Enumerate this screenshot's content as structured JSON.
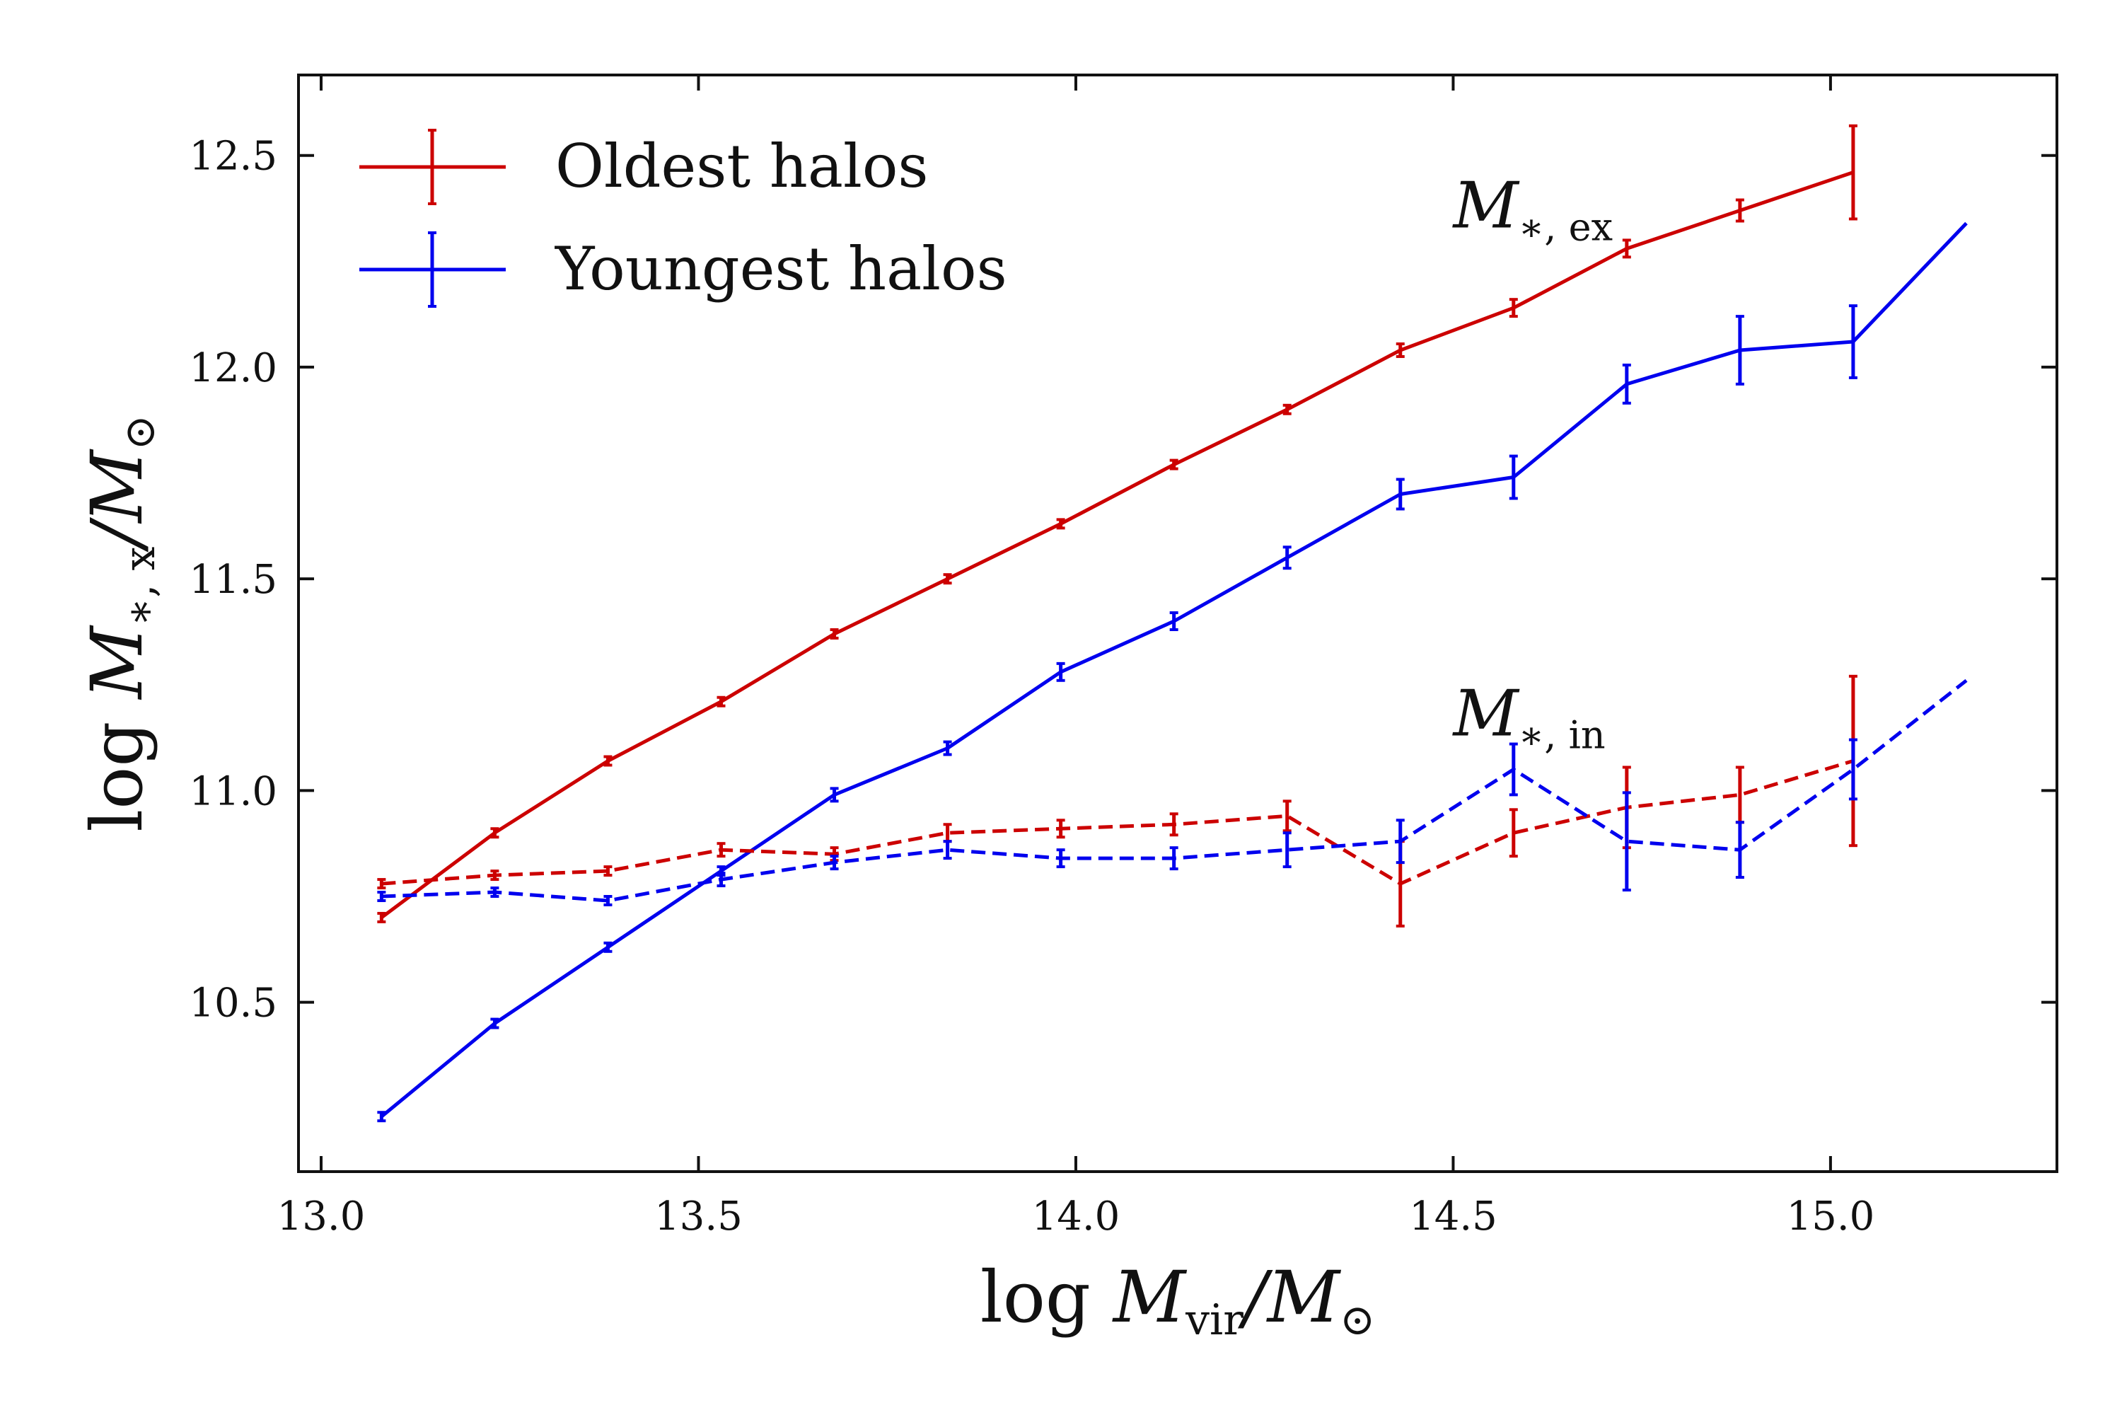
{
  "chart_data": {
    "type": "line",
    "title": "",
    "xlabel": {
      "prefix": "log ",
      "symbol": "M",
      "sub": "vir",
      "suffix": "/M",
      "suffix_sub": "⊙"
    },
    "ylabel": {
      "prefix": "log ",
      "symbol": "M",
      "sub": "∗, x",
      "suffix": "/M",
      "suffix_sub": "⊙"
    },
    "xlim": [
      12.97,
      15.3
    ],
    "ylim": [
      10.1,
      12.69
    ],
    "xticks": [
      13.0,
      13.5,
      14.0,
      14.5,
      15.0
    ],
    "xtick_labels": [
      "13.0",
      "13.5",
      "14.0",
      "14.5",
      "15.0"
    ],
    "yticks": [
      10.5,
      11.0,
      11.5,
      12.0,
      12.5
    ],
    "ytick_labels": [
      "10.5",
      "11.0",
      "11.5",
      "12.0",
      "12.5"
    ],
    "grid": false,
    "legend": {
      "placement": "top-left",
      "entries": [
        {
          "label": "Oldest halos",
          "color": "#cc0000"
        },
        {
          "label": "Youngest halos",
          "color": "#0000ee"
        }
      ]
    },
    "annotations": [
      {
        "symbol": "M",
        "sub": "∗, ex",
        "x": 14.5,
        "y": 12.33
      },
      {
        "symbol": "M",
        "sub": "∗, in",
        "x": 14.5,
        "y": 11.13
      }
    ],
    "series": [
      {
        "name": "Oldest halos M*,ex",
        "color": "#cc0000",
        "dash": "solid",
        "x": [
          13.08,
          13.23,
          13.38,
          13.53,
          13.68,
          13.83,
          13.98,
          14.13,
          14.28,
          14.43,
          14.58,
          14.73,
          14.88,
          15.03
        ],
        "y": [
          10.7,
          10.9,
          11.07,
          11.21,
          11.37,
          11.5,
          11.63,
          11.77,
          11.9,
          12.04,
          12.14,
          12.28,
          12.37,
          12.46
        ],
        "err": [
          0.01,
          0.01,
          0.01,
          0.01,
          0.01,
          0.01,
          0.01,
          0.01,
          0.01,
          0.015,
          0.02,
          0.02,
          0.025,
          0.11
        ]
      },
      {
        "name": "Youngest halos M*,ex",
        "color": "#0000ee",
        "dash": "solid",
        "x": [
          13.08,
          13.23,
          13.38,
          13.53,
          13.68,
          13.83,
          13.98,
          14.13,
          14.28,
          14.43,
          14.58,
          14.73,
          14.88,
          15.03,
          15.18
        ],
        "y": [
          10.23,
          10.45,
          10.63,
          10.81,
          10.99,
          11.1,
          11.28,
          11.4,
          11.55,
          11.7,
          11.74,
          11.96,
          12.04,
          12.06,
          12.34
        ],
        "err": [
          0.01,
          0.01,
          0.01,
          0.01,
          0.015,
          0.015,
          0.02,
          0.02,
          0.025,
          0.035,
          0.05,
          0.045,
          0.08,
          0.085,
          0.0
        ]
      },
      {
        "name": "Oldest halos M*,in",
        "color": "#cc0000",
        "dash": "dashed",
        "x": [
          13.08,
          13.23,
          13.38,
          13.53,
          13.68,
          13.83,
          13.98,
          14.13,
          14.28,
          14.43,
          14.58,
          14.73,
          14.88,
          15.03
        ],
        "y": [
          10.78,
          10.8,
          10.81,
          10.86,
          10.85,
          10.9,
          10.91,
          10.92,
          10.94,
          10.78,
          10.9,
          10.96,
          10.99,
          11.07
        ],
        "err": [
          0.01,
          0.01,
          0.01,
          0.015,
          0.015,
          0.02,
          0.02,
          0.025,
          0.035,
          0.1,
          0.055,
          0.095,
          0.065,
          0.2
        ]
      },
      {
        "name": "Youngest halos M*,in",
        "color": "#0000ee",
        "dash": "dashed",
        "x": [
          13.08,
          13.23,
          13.38,
          13.53,
          13.68,
          13.83,
          13.98,
          14.13,
          14.28,
          14.43,
          14.58,
          14.73,
          14.88,
          15.03,
          15.18
        ],
        "y": [
          10.75,
          10.76,
          10.74,
          10.79,
          10.83,
          10.86,
          10.84,
          10.84,
          10.86,
          10.88,
          11.05,
          10.88,
          10.86,
          11.05,
          11.26
        ],
        "err": [
          0.01,
          0.01,
          0.01,
          0.015,
          0.015,
          0.02,
          0.02,
          0.025,
          0.04,
          0.05,
          0.06,
          0.115,
          0.065,
          0.07,
          0.0
        ]
      }
    ]
  }
}
